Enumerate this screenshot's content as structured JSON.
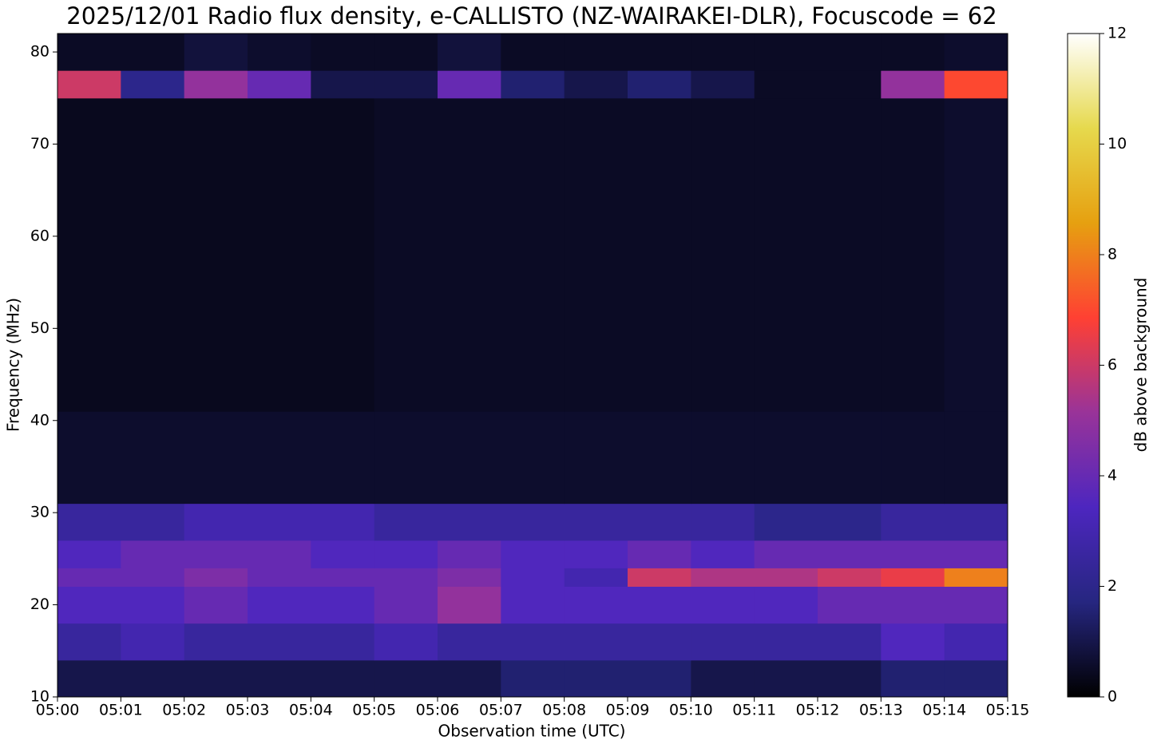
{
  "chart_data": {
    "type": "heatmap",
    "title": "2025/12/01 Radio flux density, e-CALLISTO (NZ-WAIRAKEI-DLR), Focuscode = 62",
    "xlabel": "Observation time (UTC)",
    "ylabel": "Frequency (MHz)",
    "colorbar_label": "dB above background",
    "x": [
      "05:00",
      "05:01",
      "05:02",
      "05:03",
      "05:04",
      "05:05",
      "05:06",
      "05:07",
      "05:08",
      "05:09",
      "05:10",
      "05:11",
      "05:12",
      "05:13",
      "05:14",
      "05:15"
    ],
    "ylim": [
      10,
      82
    ],
    "yticks": [
      10,
      20,
      30,
      40,
      50,
      60,
      70,
      80
    ],
    "y_bins": [
      10,
      14,
      18,
      22,
      24,
      27,
      31,
      41,
      75,
      78,
      82
    ],
    "z": [
      [
        1,
        1,
        1,
        1,
        1,
        1,
        1,
        1.5,
        1.5,
        1.5,
        1,
        1,
        1,
        1.5,
        1.5
      ],
      [
        2.5,
        3,
        2.5,
        2.5,
        2.5,
        3,
        2.5,
        2.5,
        2.5,
        2.5,
        2.5,
        2.5,
        2.5,
        3.5,
        3
      ],
      [
        3.5,
        3.5,
        4,
        3.5,
        3.5,
        4,
        5,
        3.5,
        3.5,
        3.5,
        3.5,
        3.5,
        4,
        4,
        4
      ],
      [
        4,
        4,
        4.5,
        4,
        4,
        4,
        4.5,
        3.5,
        3,
        6,
        5.5,
        5.5,
        6,
        6.5,
        8
      ],
      [
        3.5,
        4,
        4,
        4,
        3.5,
        3.5,
        4,
        3.5,
        3.5,
        4,
        3.5,
        4,
        4,
        4,
        4
      ],
      [
        2.5,
        2.5,
        3,
        3,
        3,
        2.5,
        2.5,
        2.5,
        2.5,
        2.5,
        2.5,
        2,
        2,
        2.5,
        2.5
      ],
      [
        0.6,
        0.6,
        0.6,
        0.6,
        0.6,
        0.6,
        0.6,
        0.6,
        0.6,
        0.6,
        0.6,
        0.6,
        0.6,
        0.6,
        0.6
      ],
      [
        0.4,
        0.4,
        0.4,
        0.4,
        0.4,
        0.5,
        0.5,
        0.5,
        0.5,
        0.5,
        0.5,
        0.5,
        0.5,
        0.5,
        0.6
      ],
      [
        6,
        2,
        5,
        4,
        1,
        1,
        4,
        1.5,
        1,
        1.5,
        1,
        0.5,
        0.5,
        5,
        7
      ],
      [
        0.5,
        0.5,
        0.8,
        0.6,
        0.5,
        0.5,
        0.8,
        0.5,
        0.5,
        0.5,
        0.5,
        0.5,
        0.5,
        0.5,
        0.6
      ]
    ],
    "zlim": [
      0,
      12
    ],
    "zticks": [
      0,
      2,
      4,
      6,
      8,
      10,
      12
    ],
    "colormap": [
      "#000000",
      "#262680",
      "#4d26bf",
      "#993399",
      "#ff4033",
      "#e6a010",
      "#e6d94d",
      "#ffffff"
    ]
  }
}
